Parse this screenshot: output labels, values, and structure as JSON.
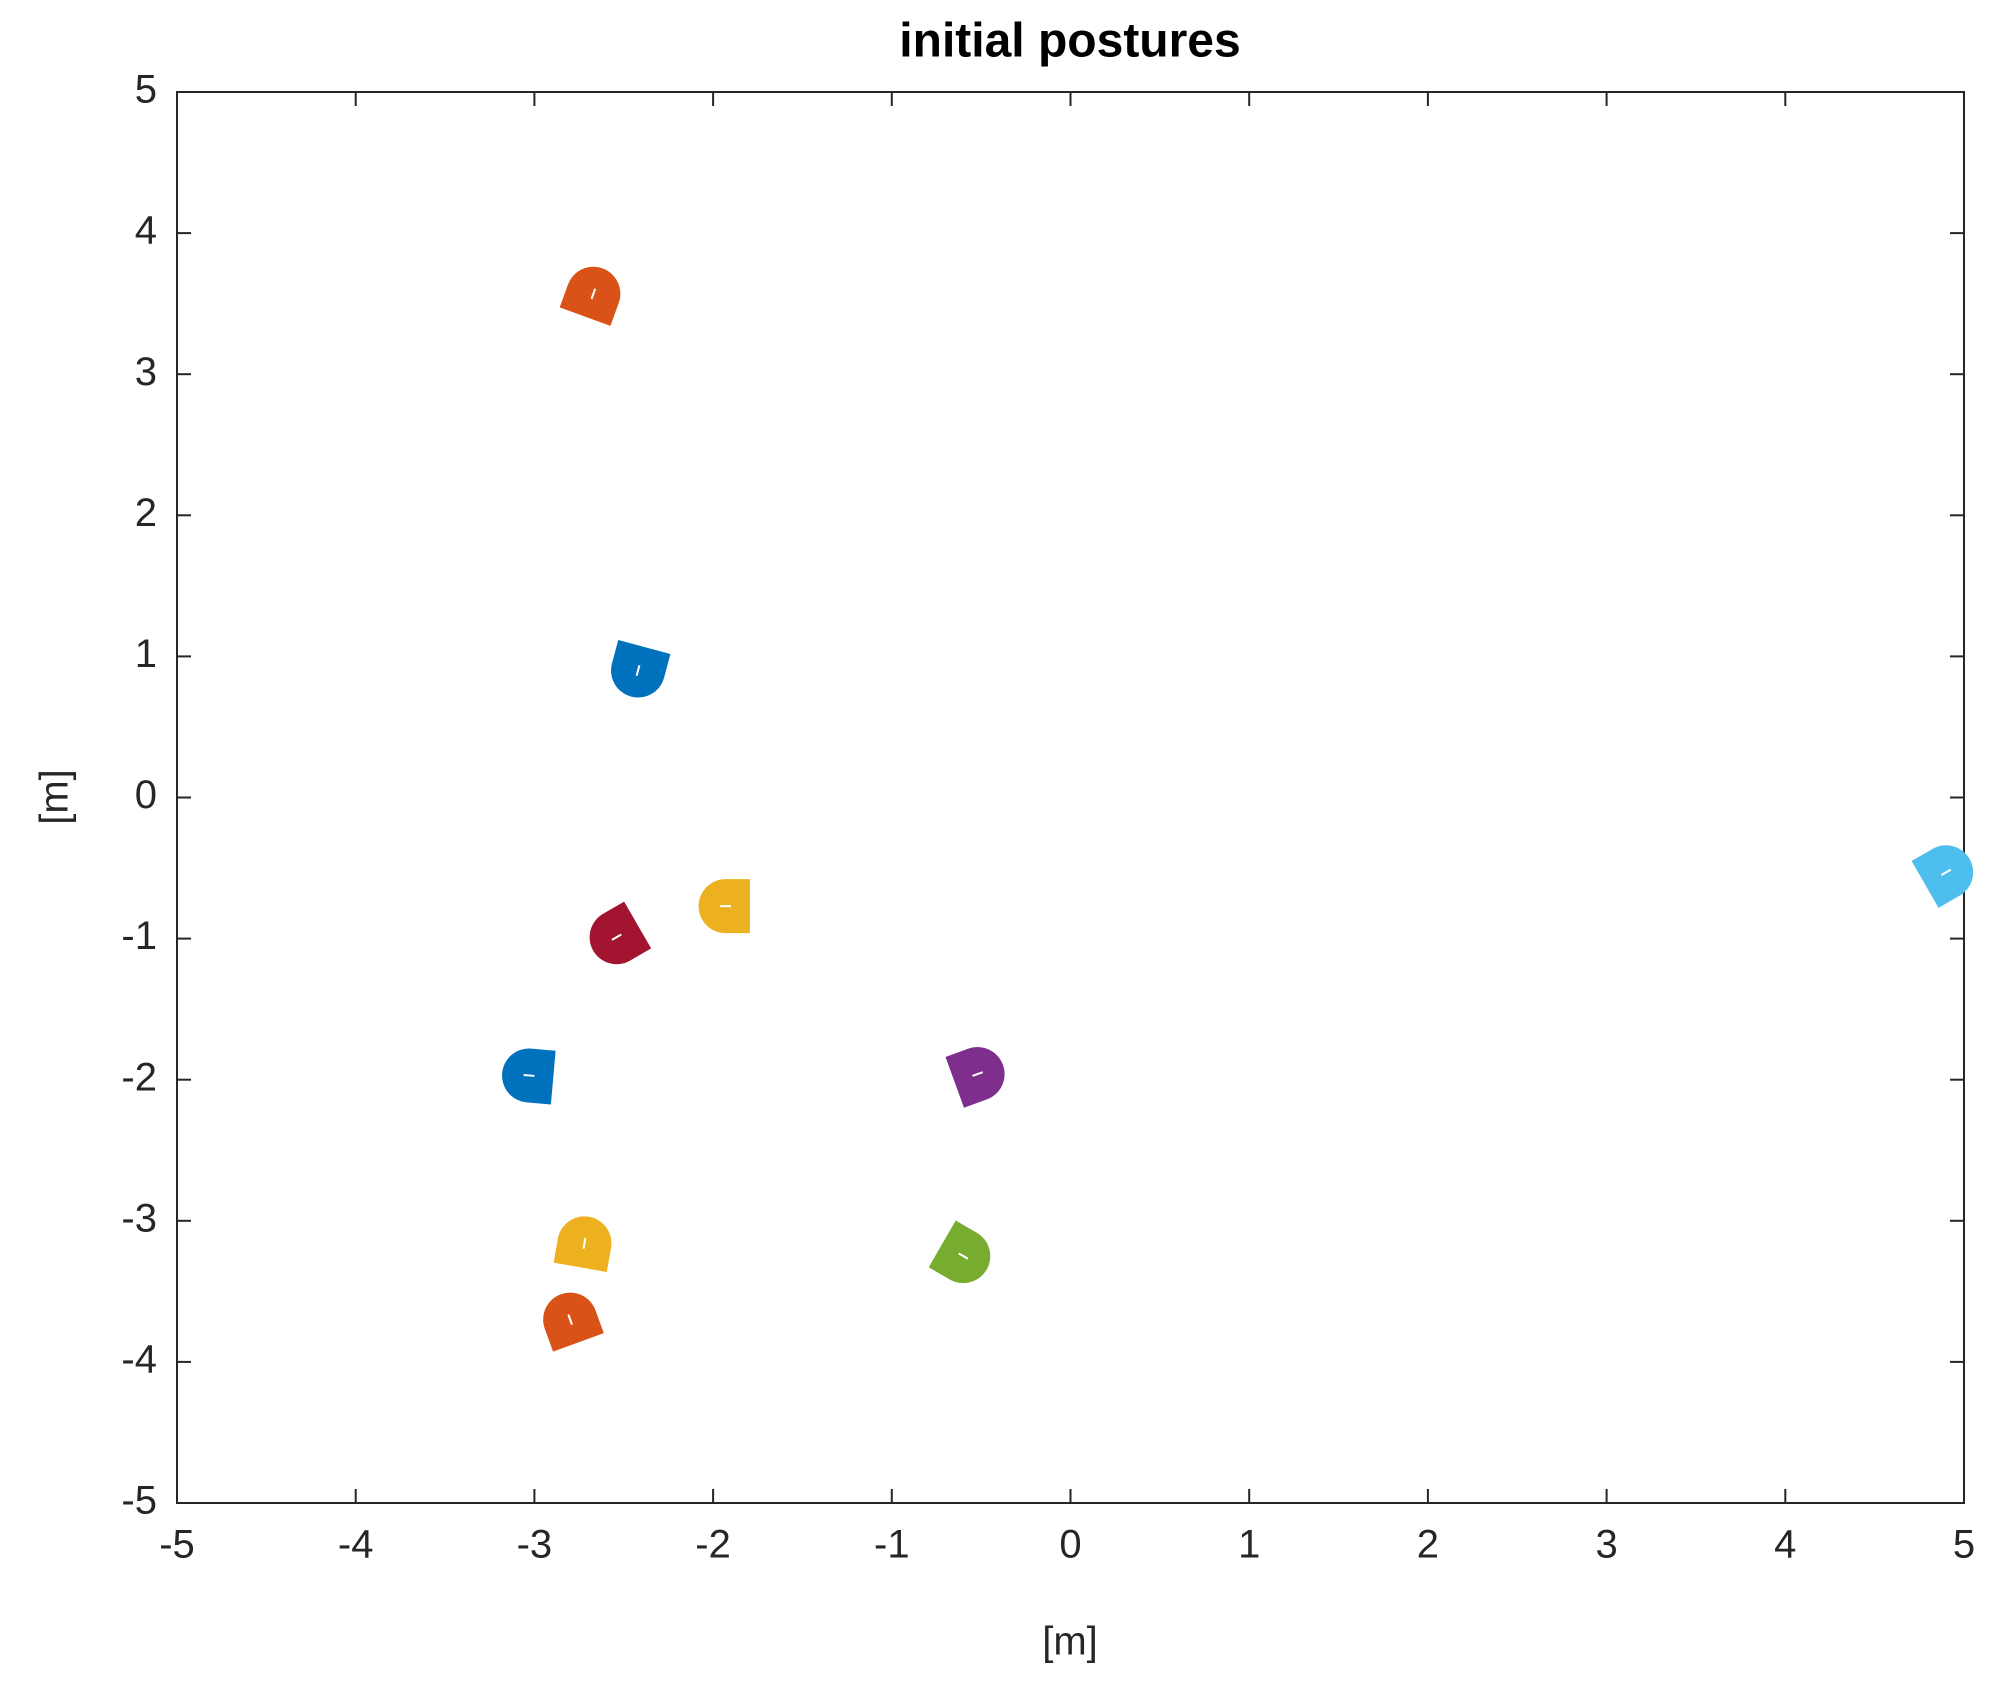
{
  "chart_data": {
    "type": "scatter",
    "title": "initial postures",
    "x_label": "[m]",
    "y_label": "[m]",
    "x": [
      -2.67,
      -2.42,
      -1.93,
      -2.54,
      -3.03,
      -0.52,
      -2.72,
      -2.8,
      -0.6,
      4.9
    ],
    "values": [
      3.57,
      0.9,
      -0.77,
      -0.99,
      -1.97,
      -1.96,
      -3.16,
      -3.7,
      -3.25,
      -0.53
    ],
    "headings": [
      70,
      -105,
      180,
      -150,
      175,
      20,
      80,
      110,
      -30,
      30
    ],
    "colors": [
      "#D95319",
      "#0072BD",
      "#EDB120",
      "#A2142F",
      "#0072BD",
      "#7E2F8E",
      "#EDB120",
      "#D95319",
      "#77AC30",
      "#4DBEEE"
    ],
    "xlim": [
      -5,
      5
    ],
    "ylim": [
      -5,
      5
    ],
    "xticks": [
      -5,
      -4,
      -3,
      -2,
      -1,
      0,
      1,
      2,
      3,
      4,
      5
    ],
    "yticks": [
      -5,
      -4,
      -3,
      -2,
      -1,
      0,
      1,
      2,
      3,
      4,
      5
    ],
    "grid": false
  }
}
